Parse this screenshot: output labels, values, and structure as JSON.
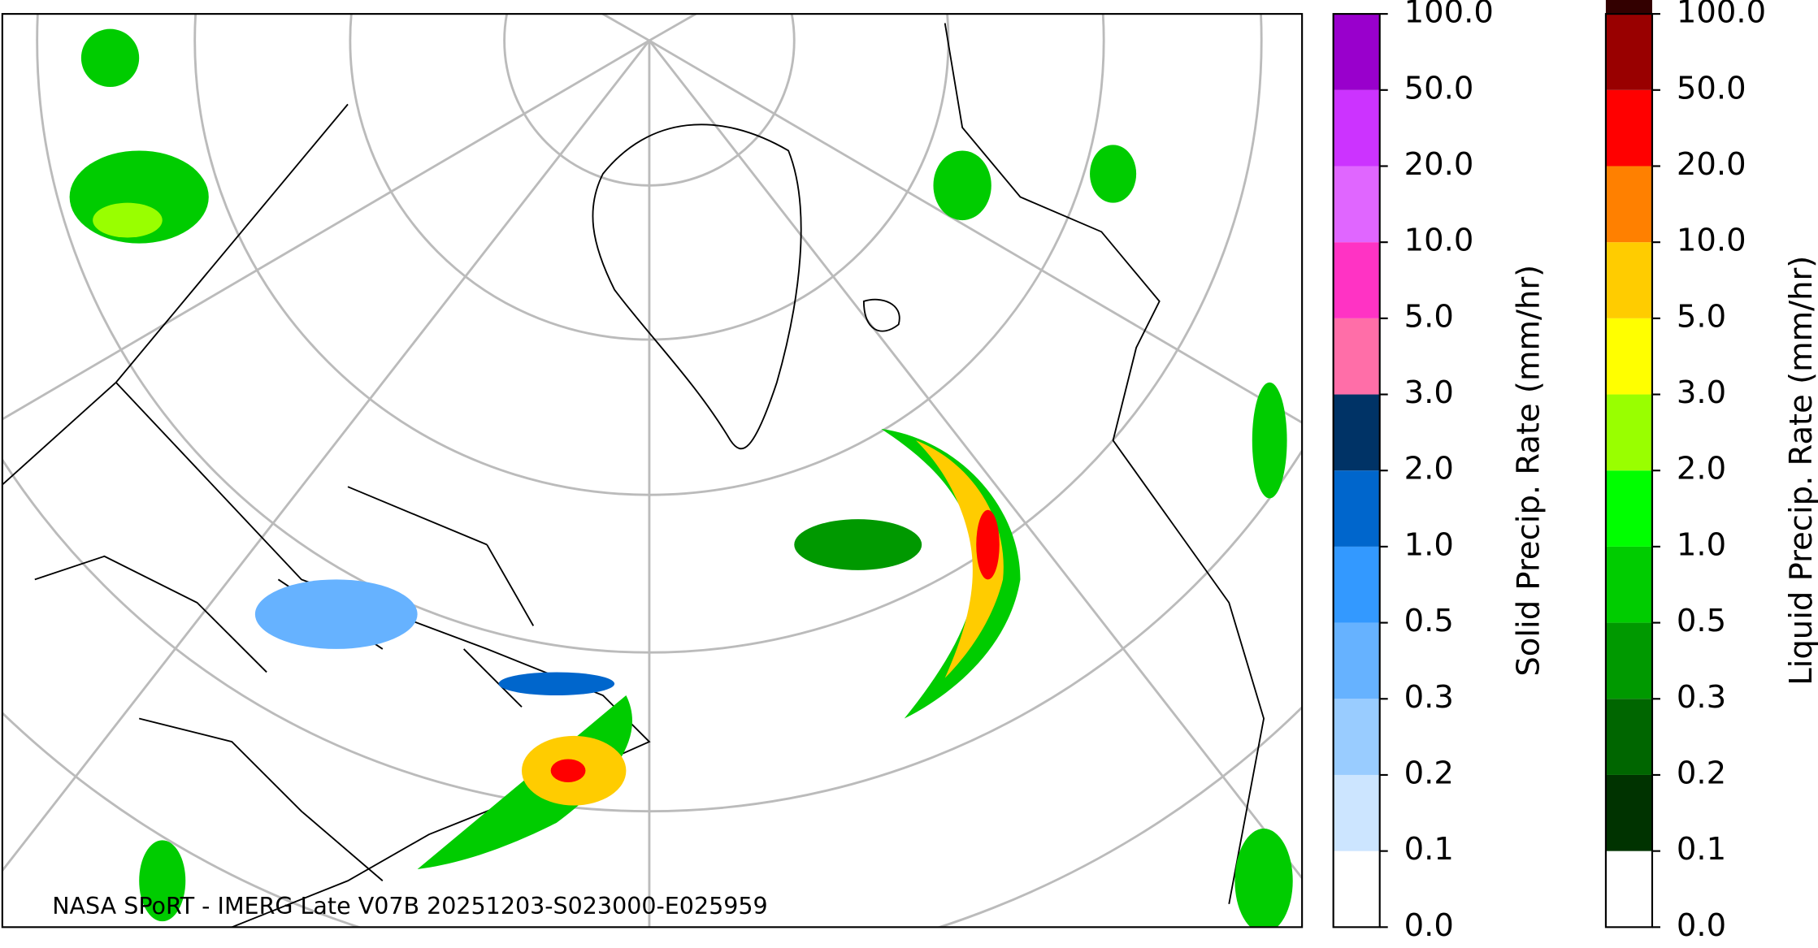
{
  "map": {
    "credit": "NASA SPoRT - IMERG Late V07B 20251203-S023000-E025959",
    "colorbars": [
      {
        "label": "Solid Precip. Rate (mm/hr)",
        "ticks": [
          {
            "value": 0,
            "label": "0.0"
          },
          {
            "value": 0.1,
            "label": "0.1"
          },
          {
            "value": 0.2,
            "label": "0.2"
          },
          {
            "value": 0.3,
            "label": "0.3"
          },
          {
            "value": 0.5,
            "label": "0.5"
          },
          {
            "value": 1,
            "label": "1.0"
          },
          {
            "value": 2,
            "label": "2.0"
          },
          {
            "value": 3,
            "label": "3.0"
          },
          {
            "value": 5,
            "label": "5.0"
          },
          {
            "value": 10,
            "label": "10.0"
          },
          {
            "value": 20,
            "label": "20.0"
          },
          {
            "value": 50,
            "label": "50.0"
          },
          {
            "value": 100,
            "label": "100.0"
          }
        ],
        "colors": [
          "#ffffff",
          "#cce5ff",
          "#99ccff",
          "#66b2ff",
          "#3399ff",
          "#0066cc",
          "#003366",
          "#ff6ea8",
          "#ff33c4",
          "#e066ff",
          "#cc33ff",
          "#9900cc"
        ]
      },
      {
        "label": "Liquid Precip. Rate (mm/hr)",
        "ticks": [
          {
            "value": 0,
            "label": "0.0"
          },
          {
            "value": 0.1,
            "label": "0.1"
          },
          {
            "value": 0.2,
            "label": "0.2"
          },
          {
            "value": 0.3,
            "label": "0.3"
          },
          {
            "value": 0.5,
            "label": "0.5"
          },
          {
            "value": 1,
            "label": "1.0"
          },
          {
            "value": 2,
            "label": "2.0"
          },
          {
            "value": 3,
            "label": "3.0"
          },
          {
            "value": 5,
            "label": "5.0"
          },
          {
            "value": 10,
            "label": "10.0"
          },
          {
            "value": 20,
            "label": "20.0"
          },
          {
            "value": 50,
            "label": "50.0"
          },
          {
            "value": 100,
            "label": "100.0"
          }
        ],
        "colors": [
          "#ffffff",
          "#003300",
          "#006600",
          "#009900",
          "#00cc00",
          "#00ff00",
          "#99ff00",
          "#ffff00",
          "#ffcc00",
          "#ff8000",
          "#ff0000",
          "#990000",
          "#330000"
        ]
      }
    ]
  }
}
